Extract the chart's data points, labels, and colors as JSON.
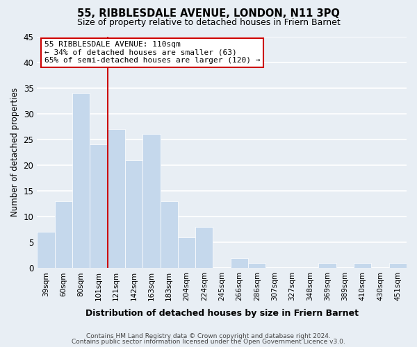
{
  "title": "55, RIBBLESDALE AVENUE, LONDON, N11 3PQ",
  "subtitle": "Size of property relative to detached houses in Friern Barnet",
  "xlabel": "Distribution of detached houses by size in Friern Barnet",
  "ylabel": "Number of detached properties",
  "categories": [
    "39sqm",
    "60sqm",
    "80sqm",
    "101sqm",
    "121sqm",
    "142sqm",
    "163sqm",
    "183sqm",
    "204sqm",
    "224sqm",
    "245sqm",
    "266sqm",
    "286sqm",
    "307sqm",
    "327sqm",
    "348sqm",
    "369sqm",
    "389sqm",
    "410sqm",
    "430sqm",
    "451sqm"
  ],
  "values": [
    7,
    13,
    34,
    24,
    27,
    21,
    26,
    13,
    6,
    8,
    0,
    2,
    1,
    0,
    0,
    0,
    1,
    0,
    1,
    0,
    1
  ],
  "bar_color": "#c5d8ec",
  "bar_edge_color": "#ffffff",
  "vline_x_idx": 3.5,
  "vline_color": "#cc0000",
  "annotation_title": "55 RIBBLESDALE AVENUE: 110sqm",
  "annotation_line1": "← 34% of detached houses are smaller (63)",
  "annotation_line2": "65% of semi-detached houses are larger (120) →",
  "annotation_box_facecolor": "#ffffff",
  "annotation_box_edgecolor": "#cc0000",
  "ylim": [
    0,
    45
  ],
  "yticks": [
    0,
    5,
    10,
    15,
    20,
    25,
    30,
    35,
    40,
    45
  ],
  "footer1": "Contains HM Land Registry data © Crown copyright and database right 2024.",
  "footer2": "Contains public sector information licensed under the Open Government Licence v3.0.",
  "bg_color": "#e8eef4",
  "grid_color": "#ffffff"
}
